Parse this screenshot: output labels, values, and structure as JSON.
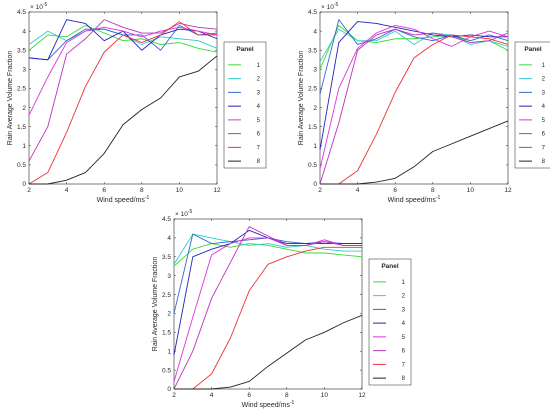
{
  "chart_data": [
    {
      "type": "line",
      "xlabel": "Wind speed/ms",
      "xlabel_sup": "-1",
      "ylabel": "Rain Average Volume Fraction",
      "y_multiplier": "× 10",
      "y_multiplier_sup": "-5",
      "legend_title": "Panel",
      "legend_position": "right",
      "grid": false,
      "xlim": [
        2,
        12
      ],
      "ylim": [
        0,
        4.5
      ],
      "x_ticks": [
        2,
        4,
        6,
        8,
        10,
        12
      ],
      "y_ticks": [
        0,
        0.5,
        1,
        1.5,
        2,
        2.5,
        3,
        3.5,
        4,
        4.5
      ],
      "x": [
        2,
        3,
        4,
        5,
        6,
        7,
        8,
        9,
        10,
        11,
        12
      ],
      "series": [
        {
          "name": "1",
          "color": "#33dd33",
          "values": [
            3.5,
            3.9,
            3.85,
            4.15,
            3.95,
            3.75,
            3.8,
            3.65,
            3.7,
            3.55,
            3.45
          ]
        },
        {
          "name": "2",
          "color": "#33cccc",
          "values": [
            3.65,
            4.0,
            3.75,
            4.0,
            4.05,
            3.9,
            3.65,
            3.85,
            3.8,
            3.75,
            3.55
          ]
        },
        {
          "name": "3",
          "color": "#3366cc",
          "values": [
            3.3,
            3.25,
            3.75,
            4.05,
            4.05,
            3.9,
            3.9,
            3.5,
            4.15,
            3.9,
            3.95
          ]
        },
        {
          "name": "4",
          "color": "#2222bb",
          "values": [
            3.3,
            3.25,
            4.3,
            4.2,
            3.75,
            4.0,
            3.5,
            3.9,
            4.05,
            4.0,
            3.8
          ]
        },
        {
          "name": "5",
          "color": "#dd33dd",
          "values": [
            1.8,
            2.8,
            3.7,
            4.0,
            4.1,
            4.0,
            3.85,
            4.0,
            4.1,
            4.0,
            3.9
          ]
        },
        {
          "name": "6",
          "color": "#bb33bb",
          "values": [
            0.6,
            1.5,
            3.4,
            3.8,
            4.3,
            4.1,
            3.95,
            3.95,
            4.2,
            4.1,
            4.05
          ]
        },
        {
          "name": "7",
          "color": "#ee3333",
          "values": [
            0.0,
            0.3,
            1.35,
            2.55,
            3.45,
            3.9,
            3.7,
            3.9,
            4.25,
            3.9,
            3.9
          ]
        },
        {
          "name": "8",
          "color": "#222222",
          "values": [
            0.0,
            0.0,
            0.1,
            0.3,
            0.8,
            1.55,
            1.95,
            2.25,
            2.8,
            2.95,
            3.35
          ]
        }
      ]
    },
    {
      "type": "line",
      "xlabel": "Wind speed/ms",
      "xlabel_sup": "-1",
      "ylabel": "Rain Average Volume Fraction",
      "y_multiplier": "× 10",
      "y_multiplier_sup": "-5",
      "legend_title": "Panel",
      "legend_position": "right",
      "grid": false,
      "xlim": [
        2,
        12
      ],
      "ylim": [
        0,
        4.5
      ],
      "x_ticks": [
        2,
        4,
        6,
        8,
        10,
        12
      ],
      "y_ticks": [
        0,
        0.5,
        1,
        1.5,
        2,
        2.5,
        3,
        3.5,
        4,
        4.5
      ],
      "x": [
        2,
        3,
        4,
        5,
        6,
        7,
        8,
        9,
        10,
        11,
        12
      ],
      "series": [
        {
          "name": "1",
          "color": "#33dd33",
          "values": [
            3.0,
            4.15,
            3.75,
            3.7,
            3.8,
            3.8,
            3.85,
            3.9,
            3.7,
            3.75,
            3.5
          ]
        },
        {
          "name": "2",
          "color": "#33cccc",
          "values": [
            3.2,
            4.05,
            3.75,
            3.75,
            4.0,
            3.65,
            3.95,
            3.9,
            3.65,
            3.75,
            3.6
          ]
        },
        {
          "name": "3",
          "color": "#3366cc",
          "values": [
            2.35,
            4.3,
            3.65,
            3.8,
            4.05,
            3.85,
            3.75,
            3.9,
            3.75,
            3.9,
            3.75
          ]
        },
        {
          "name": "4",
          "color": "#2222bb",
          "values": [
            0.9,
            3.7,
            4.25,
            4.2,
            4.1,
            4.0,
            3.9,
            3.85,
            3.9,
            3.85,
            3.85
          ]
        },
        {
          "name": "5",
          "color": "#dd33dd",
          "values": [
            0.4,
            2.5,
            3.55,
            3.95,
            4.15,
            4.05,
            3.8,
            3.6,
            3.85,
            4.0,
            3.85
          ]
        },
        {
          "name": "6",
          "color": "#bb33bb",
          "values": [
            0.0,
            1.6,
            3.5,
            3.9,
            4.05,
            3.9,
            3.95,
            3.85,
            3.7,
            3.75,
            3.95
          ]
        },
        {
          "name": "7",
          "color": "#ee3333",
          "values": [
            0.0,
            0.0,
            0.35,
            1.3,
            2.4,
            3.3,
            3.65,
            3.9,
            3.85,
            3.8,
            3.65
          ]
        },
        {
          "name": "8",
          "color": "#222222",
          "values": [
            0.0,
            0.0,
            0.0,
            0.05,
            0.15,
            0.45,
            0.85,
            1.05,
            1.25,
            1.45,
            1.65
          ]
        }
      ]
    },
    {
      "type": "line",
      "xlabel": "Wind speed/ms",
      "xlabel_sup": "-1",
      "ylabel": "Rain Average Volume Fraction",
      "y_multiplier": "× 10",
      "y_multiplier_sup": "-5",
      "legend_title": "Panel",
      "legend_position": "right",
      "grid": false,
      "xlim": [
        2,
        12
      ],
      "ylim": [
        0,
        4.5
      ],
      "x_ticks": [
        2,
        4,
        6,
        8,
        10,
        12
      ],
      "y_ticks": [
        0,
        0.5,
        1,
        1.5,
        2,
        2.5,
        3,
        3.5,
        4,
        4.5
      ],
      "x": [
        2,
        3,
        4,
        5,
        6,
        7,
        8,
        9,
        10,
        11,
        12
      ],
      "series": [
        {
          "name": "1",
          "color": "#33dd33",
          "values": [
            3.25,
            3.7,
            3.85,
            3.75,
            3.85,
            3.8,
            3.7,
            3.6,
            3.6,
            3.55,
            3.5
          ]
        },
        {
          "name": "2",
          "color": "#33cccc",
          "values": [
            3.3,
            4.1,
            4.0,
            3.9,
            3.8,
            3.85,
            3.75,
            3.8,
            3.7,
            3.65,
            3.65
          ]
        },
        {
          "name": "3",
          "color": "#3366cc",
          "values": [
            2.0,
            4.1,
            3.85,
            3.9,
            3.95,
            4.0,
            3.9,
            3.85,
            3.9,
            3.85,
            3.85
          ]
        },
        {
          "name": "4",
          "color": "#2222bb",
          "values": [
            0.9,
            3.5,
            3.7,
            3.85,
            4.2,
            4.0,
            3.85,
            3.85,
            3.85,
            3.85,
            3.85
          ]
        },
        {
          "name": "5",
          "color": "#dd33dd",
          "values": [
            0.2,
            1.9,
            3.55,
            3.85,
            4.0,
            4.0,
            3.8,
            3.8,
            3.95,
            3.8,
            3.8
          ]
        },
        {
          "name": "6",
          "color": "#bb33bb",
          "values": [
            0.0,
            1.0,
            2.4,
            3.35,
            4.3,
            4.05,
            3.8,
            3.8,
            3.9,
            3.8,
            3.8
          ]
        },
        {
          "name": "7",
          "color": "#ee3333",
          "values": [
            0.0,
            0.0,
            0.4,
            1.35,
            2.6,
            3.3,
            3.5,
            3.65,
            3.75,
            3.75,
            3.75
          ]
        },
        {
          "name": "8",
          "color": "#222222",
          "values": [
            0.0,
            0.0,
            0.0,
            0.05,
            0.2,
            0.6,
            0.95,
            1.3,
            1.5,
            1.75,
            1.95
          ]
        }
      ]
    }
  ]
}
